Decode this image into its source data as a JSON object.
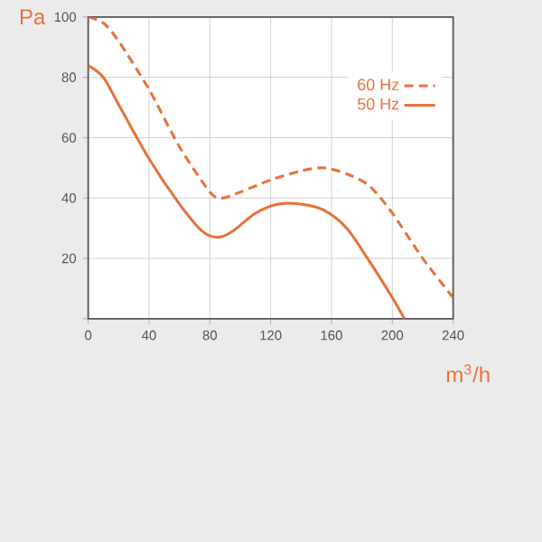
{
  "chart_data": {
    "type": "line",
    "ylabel": "Pa",
    "xlabel": "m$^{3}$/h",
    "xlim": [
      0,
      240
    ],
    "ylim": [
      0,
      100
    ],
    "xticks": [
      0,
      40,
      80,
      120,
      160,
      200,
      240
    ],
    "yticks": [
      {
        "value": 0,
        "label": null
      },
      20,
      40,
      60,
      80,
      100
    ],
    "grid": true,
    "legend": "top right",
    "series": [
      {
        "name": "60 Hz",
        "color": "#e8703a",
        "line_style": "dashed",
        "x": [
          0,
          10,
          20,
          40,
          60,
          80,
          88,
          100,
          120,
          140,
          155,
          170,
          185,
          200,
          220,
          240
        ],
        "values": [
          100,
          98,
          92,
          76,
          57,
          42,
          40,
          42,
          46,
          49,
          50,
          48,
          44,
          35,
          20,
          7
        ]
      },
      {
        "name": "50 Hz",
        "color": "#e8703a",
        "line_style": "solid",
        "x": [
          0,
          10,
          20,
          40,
          60,
          75,
          85,
          95,
          110,
          125,
          140,
          155,
          170,
          185,
          200,
          208
        ],
        "values": [
          84,
          80,
          71,
          53,
          38,
          29,
          27,
          29,
          35,
          38,
          38,
          36,
          30,
          19,
          7,
          0
        ]
      }
    ]
  }
}
